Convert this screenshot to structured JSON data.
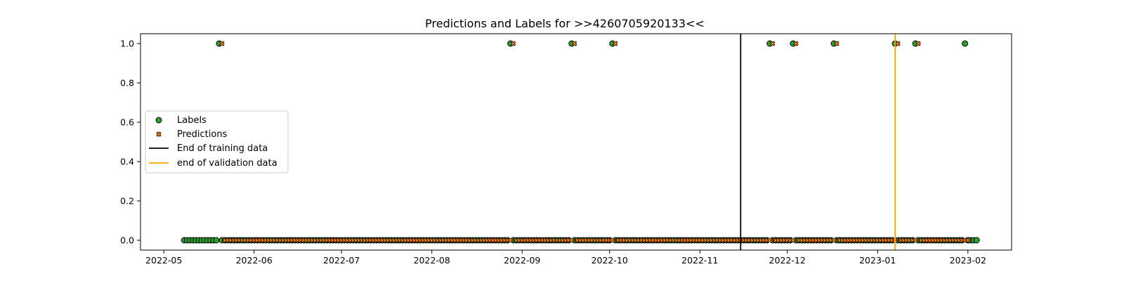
{
  "chart_data": {
    "type": "scatter",
    "title": "Predictions and Labels for >>4260705920133<<",
    "xlabel": "",
    "ylabel": "",
    "x_axis": {
      "range": [
        "2022-04-23",
        "2023-02-16"
      ],
      "ticks": [
        {
          "date": "2022-05-01",
          "label": "2022-05"
        },
        {
          "date": "2022-06-01",
          "label": "2022-06"
        },
        {
          "date": "2022-07-01",
          "label": "2022-07"
        },
        {
          "date": "2022-08-01",
          "label": "2022-08"
        },
        {
          "date": "2022-09-01",
          "label": "2022-09"
        },
        {
          "date": "2022-10-01",
          "label": "2022-10"
        },
        {
          "date": "2022-11-01",
          "label": "2022-11"
        },
        {
          "date": "2022-12-01",
          "label": "2022-12"
        },
        {
          "date": "2023-01-01",
          "label": "2023-01"
        },
        {
          "date": "2023-02-01",
          "label": "2023-02"
        }
      ]
    },
    "y_axis": {
      "range": [
        -0.05,
        1.05
      ],
      "ticks": [
        {
          "value": 0.0,
          "label": "0.0"
        },
        {
          "value": 0.2,
          "label": "0.2"
        },
        {
          "value": 0.4,
          "label": "0.4"
        },
        {
          "value": 0.6,
          "label": "0.6"
        },
        {
          "value": 0.8,
          "label": "0.8"
        },
        {
          "value": 1.0,
          "label": "1.0"
        }
      ]
    },
    "grid": false,
    "legend_placement": "center-left",
    "date_range": [
      "2022-05-08",
      "2023-02-04"
    ],
    "predictions_date_range": [
      "2022-05-20",
      "2023-01-31"
    ],
    "positive_dates": [
      "2022-05-20",
      "2022-08-28",
      "2022-09-18",
      "2022-10-02",
      "2022-11-25",
      "2022-12-03",
      "2022-12-17",
      "2023-01-07",
      "2023-01-14",
      "2023-01-31"
    ],
    "prediction_positive_dates": [
      "2022-05-20",
      "2022-08-28",
      "2022-09-18",
      "2022-10-02",
      "2022-11-25",
      "2022-12-03",
      "2022-12-17",
      "2023-01-07",
      "2023-01-14"
    ],
    "series": [
      {
        "name": "Labels",
        "kind": "marker",
        "marker": "circle",
        "color": "#2ca02c",
        "edge_color": "#000000"
      },
      {
        "name": "Predictions",
        "kind": "marker",
        "marker": "x",
        "color": "#ff7f0e",
        "edge_color": "#000000"
      }
    ],
    "vlines": [
      {
        "name": "End of training data",
        "date": "2022-11-15",
        "color": "#000000"
      },
      {
        "name": "end of validation data",
        "date": "2023-01-07",
        "color": "#ffa500"
      }
    ]
  }
}
